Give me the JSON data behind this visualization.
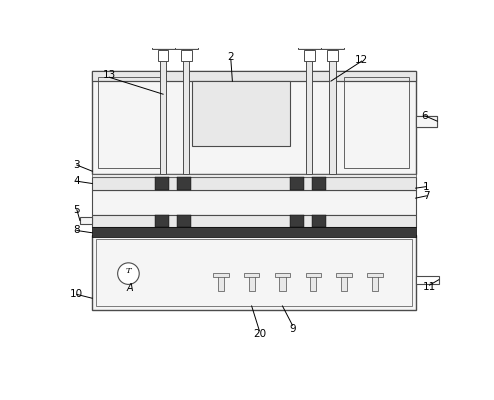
{
  "line_color": "#4b4b4b",
  "bg_color": "#ffffff",
  "black": "#000000",
  "dark_fill": "#3a3a3a",
  "light_fill": "#f5f5f5",
  "mid_fill": "#e8e8e8",
  "white": "#ffffff"
}
